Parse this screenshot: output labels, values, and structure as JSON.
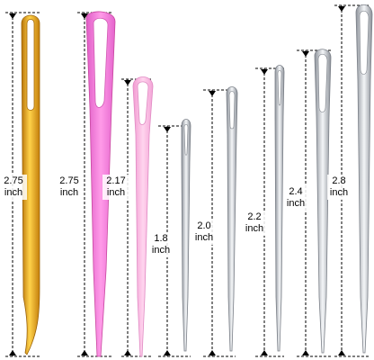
{
  "needles": [
    {
      "length": "2.75",
      "unit": "inch",
      "material": "gold metal",
      "color": "#e8a317"
    },
    {
      "length": "2.75",
      "unit": "inch",
      "material": "pink plastic",
      "color": "#f27ad8"
    },
    {
      "length": "2.17",
      "unit": "inch",
      "material": "light pink plastic",
      "color": "#f7b3df"
    },
    {
      "length": "1.8",
      "unit": "inch",
      "material": "steel",
      "color": "#c8ccd2"
    },
    {
      "length": "2.0",
      "unit": "inch",
      "material": "steel",
      "color": "#c8ccd2"
    },
    {
      "length": "2.2",
      "unit": "inch",
      "material": "steel",
      "color": "#c8ccd2"
    },
    {
      "length": "2.4",
      "unit": "inch",
      "material": "steel",
      "color": "#c8ccd2"
    },
    {
      "length": "2.8",
      "unit": "inch",
      "material": "steel",
      "color": "#c8ccd2"
    }
  ]
}
